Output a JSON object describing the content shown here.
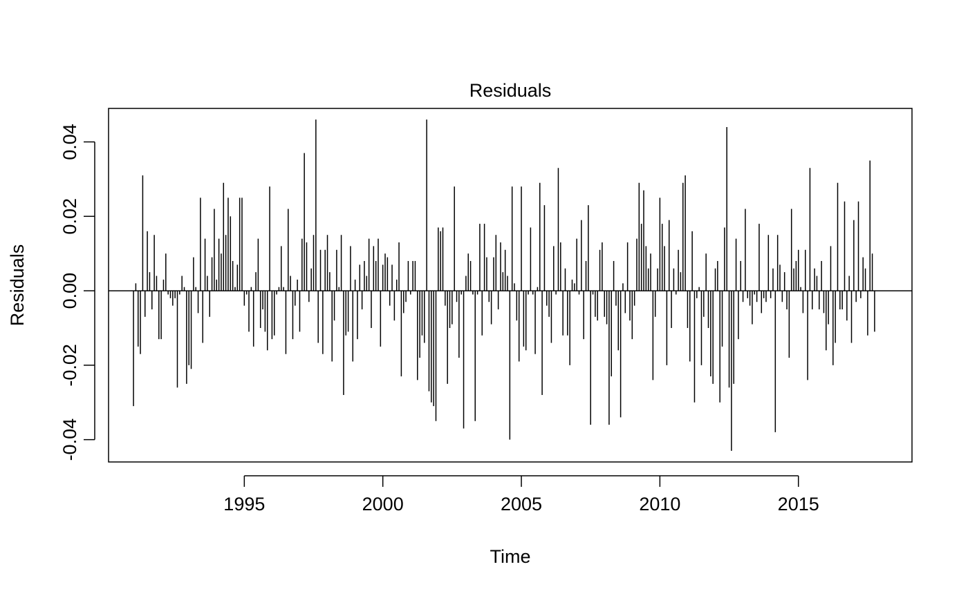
{
  "chart_data": {
    "type": "bar",
    "title": "Residuals",
    "xlabel": "Time",
    "ylabel": "Residuals",
    "xlim": [
      1990.1,
      2019.1
    ],
    "ylim": [
      -0.046,
      0.049
    ],
    "x_ticks": [
      1995,
      2000,
      2005,
      2010,
      2015
    ],
    "x_tick_labels": [
      "1995",
      "2000",
      "2005",
      "2010",
      "2015"
    ],
    "y_ticks": [
      -0.04,
      -0.02,
      0.0,
      0.02,
      0.04
    ],
    "y_tick_labels": [
      "-0.04",
      "-0.02",
      "0.00",
      "0.02",
      "0.04"
    ],
    "grid": false,
    "start_year": 1991,
    "start_month": 1,
    "frequency": 12,
    "series": [
      {
        "values": [
          -0.031,
          0.002,
          -0.015,
          -0.017,
          0.031,
          -0.007,
          0.016,
          0.005,
          -0.005,
          0.015,
          0.004,
          -0.013,
          -0.013,
          0.003,
          0.01,
          -0.001,
          -0.002,
          -0.004,
          -0.002,
          -0.026,
          -0.001,
          0.004,
          0.001,
          -0.025,
          -0.02,
          -0.021,
          0.009,
          0.001,
          -0.006,
          0.025,
          -0.014,
          0.014,
          0.004,
          -0.007,
          0.009,
          0.022,
          0.003,
          0.014,
          0.01,
          0.029,
          0.015,
          0.025,
          0.02,
          0.008,
          0.001,
          0.007,
          0.025,
          0.025,
          -0.004,
          -0.001,
          -0.011,
          0.001,
          -0.015,
          0.005,
          0.014,
          -0.01,
          -0.005,
          -0.011,
          -0.016,
          0.028,
          -0.013,
          -0.012,
          -0.001,
          0.001,
          0.012,
          0.001,
          -0.017,
          0.022,
          0.004,
          -0.013,
          -0.004,
          0.003,
          -0.011,
          0.014,
          0.037,
          0.013,
          -0.003,
          0.006,
          0.015,
          0.046,
          -0.014,
          0.011,
          -0.017,
          0.011,
          0.015,
          0.005,
          -0.019,
          -0.008,
          0.011,
          0.001,
          0.015,
          -0.028,
          -0.012,
          -0.011,
          0.012,
          -0.019,
          0.003,
          -0.013,
          0.007,
          -0.005,
          0.008,
          0.004,
          0.014,
          -0.01,
          0.012,
          0.008,
          0.014,
          -0.015,
          0.007,
          0.01,
          0.009,
          -0.004,
          0.007,
          -0.008,
          0.003,
          0.013,
          -0.023,
          -0.006,
          -0.003,
          0.008,
          -0.001,
          0.008,
          0.008,
          -0.024,
          -0.018,
          -0.012,
          -0.014,
          0.046,
          -0.027,
          -0.03,
          -0.031,
          -0.035,
          0.017,
          0.016,
          0.017,
          -0.004,
          -0.025,
          -0.01,
          -0.009,
          0.028,
          -0.003,
          -0.018,
          -0.001,
          -0.037,
          0.004,
          0.01,
          0.008,
          -0.001,
          -0.035,
          -0.001,
          0.018,
          -0.012,
          0.018,
          0.009,
          -0.003,
          -0.009,
          0.009,
          0.015,
          -0.005,
          0.013,
          0.005,
          0.011,
          0.004,
          -0.04,
          0.028,
          0.002,
          -0.008,
          -0.019,
          0.028,
          -0.015,
          -0.016,
          -0.001,
          0.017,
          -0.001,
          -0.017,
          0.001,
          0.029,
          -0.028,
          0.023,
          -0.004,
          -0.007,
          -0.014,
          0.012,
          -0.001,
          0.033,
          0.013,
          -0.012,
          0.006,
          -0.012,
          -0.02,
          0.003,
          0.002,
          0.014,
          -0.001,
          0.019,
          -0.013,
          0.008,
          0.023,
          -0.036,
          -0.001,
          -0.007,
          -0.008,
          0.011,
          0.013,
          -0.007,
          -0.009,
          -0.036,
          -0.023,
          0.008,
          -0.004,
          -0.016,
          -0.034,
          0.002,
          -0.006,
          0.013,
          -0.008,
          -0.013,
          -0.004,
          0.014,
          0.029,
          0.018,
          0.027,
          0.012,
          0.006,
          0.01,
          -0.024,
          -0.007,
          0.006,
          0.025,
          0.018,
          0.012,
          -0.02,
          0.019,
          -0.01,
          0.006,
          -0.001,
          0.011,
          0.005,
          0.029,
          0.031,
          -0.01,
          -0.019,
          0.016,
          -0.03,
          -0.002,
          0.001,
          -0.02,
          -0.007,
          0.01,
          -0.01,
          -0.023,
          -0.025,
          0.006,
          0.008,
          -0.03,
          -0.015,
          0.017,
          0.044,
          -0.026,
          -0.043,
          -0.025,
          0.014,
          -0.013,
          0.008,
          -0.003,
          0.022,
          -0.002,
          -0.004,
          -0.009,
          -0.001,
          -0.003,
          0.018,
          -0.006,
          -0.002,
          -0.003,
          0.015,
          -0.002,
          0.006,
          -0.038,
          0.015,
          0.007,
          -0.003,
          0.005,
          -0.005,
          -0.018,
          0.022,
          0.006,
          0.008,
          0.011,
          0.001,
          -0.006,
          0.011,
          -0.024,
          0.033,
          -0.005,
          0.006,
          0.004,
          -0.005,
          0.008,
          -0.006,
          -0.016,
          -0.009,
          0.012,
          -0.02,
          -0.014,
          0.029,
          -0.005,
          -0.005,
          0.024,
          -0.008,
          0.004,
          -0.014,
          0.019,
          -0.003,
          0.024,
          -0.002,
          0.009,
          0.006,
          -0.012,
          0.035,
          0.01,
          -0.011
        ]
      }
    ]
  }
}
